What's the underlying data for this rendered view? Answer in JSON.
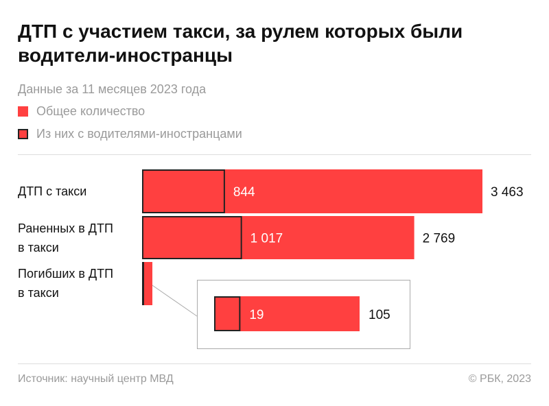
{
  "title": "ДТП с участием такси, за рулем которых были водители-иностранцы",
  "subtitle": "Данные за 11 месяцев 2023 года",
  "legend": [
    {
      "label": "Общее количество",
      "color": "#ff4040"
    },
    {
      "label": "Из них с водителями-иностранцами",
      "color": "#ff4040",
      "outline": "#222222"
    }
  ],
  "chart_data": {
    "type": "bar",
    "orientation": "horizontal",
    "categories": [
      "ДТП с такси",
      "Раненных в ДТП в такси",
      "Погибших в ДТП в такси"
    ],
    "series": [
      {
        "name": "Общее количество",
        "values": [
          3463,
          2769,
          105
        ],
        "labels": [
          "3 463",
          "2 769",
          "105"
        ]
      },
      {
        "name": "Из них с водителями-иностранцами",
        "values": [
          844,
          1017,
          19
        ],
        "labels": [
          "844",
          "1 017",
          "19"
        ]
      }
    ],
    "inset_zoom_category": "Погибших в ДТП в такси"
  },
  "category_lines": [
    [
      "ДТП с такси"
    ],
    [
      "Раненных в ДТП",
      "в такси"
    ],
    [
      "Погибших в ДТП",
      "в такси"
    ]
  ],
  "footer": {
    "source": "Источник: научный центр МВД",
    "copyright": "© РБК, 2023"
  }
}
